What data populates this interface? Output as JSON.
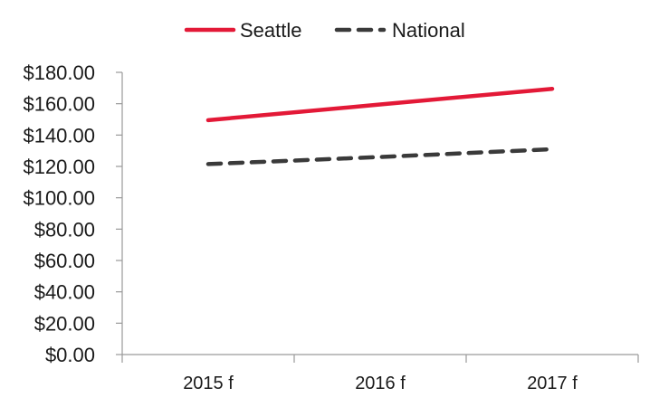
{
  "chart_data": {
    "type": "line",
    "categories": [
      "2015 f",
      "2016 f",
      "2017 f"
    ],
    "series": [
      {
        "name": "Seattle",
        "values": [
          149.5,
          159.5,
          169.5
        ],
        "color": "#e31937",
        "dash": "solid"
      },
      {
        "name": "National",
        "values": [
          121.5,
          126.0,
          131.0
        ],
        "color": "#3a3a3a",
        "dash": "dashed"
      }
    ],
    "ylim": [
      0,
      180
    ],
    "y_ticks": [
      0,
      20,
      40,
      60,
      80,
      100,
      120,
      140,
      160,
      180
    ],
    "y_tick_labels": [
      "$0.00",
      "$20.00",
      "$40.00",
      "$60.00",
      "$80.00",
      "$100.00",
      "$120.00",
      "$140.00",
      "$160.00",
      "$180.00"
    ],
    "grid": false,
    "legend_position": "top-center"
  }
}
